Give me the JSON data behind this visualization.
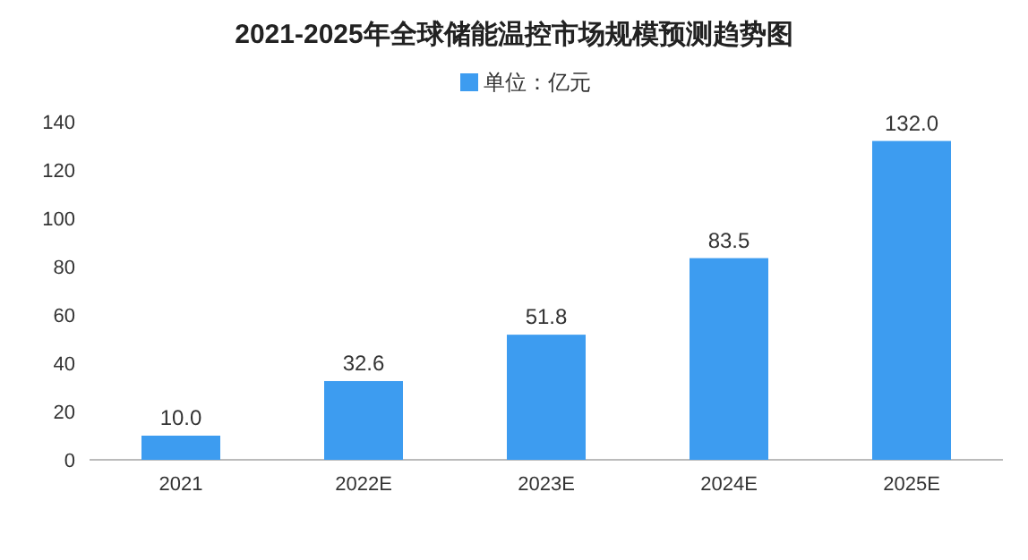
{
  "chart_data": {
    "type": "bar",
    "title": "2021-2025年全球储能温控市场规模预测趋势图",
    "categories": [
      "2021",
      "2022E",
      "2023E",
      "2024E",
      "2025E"
    ],
    "series": [
      {
        "name": "单位：亿元",
        "color": "#3d9cf0",
        "values": [
          10.0,
          32.6,
          51.8,
          83.5,
          132.0
        ],
        "value_labels": [
          "10.0",
          "32.6",
          "51.8",
          "83.5",
          "132.0"
        ]
      }
    ],
    "ylim": [
      0,
      140
    ],
    "yticks": [
      0,
      20,
      40,
      60,
      80,
      100,
      120,
      140
    ],
    "legend": "top",
    "grid": false
  }
}
